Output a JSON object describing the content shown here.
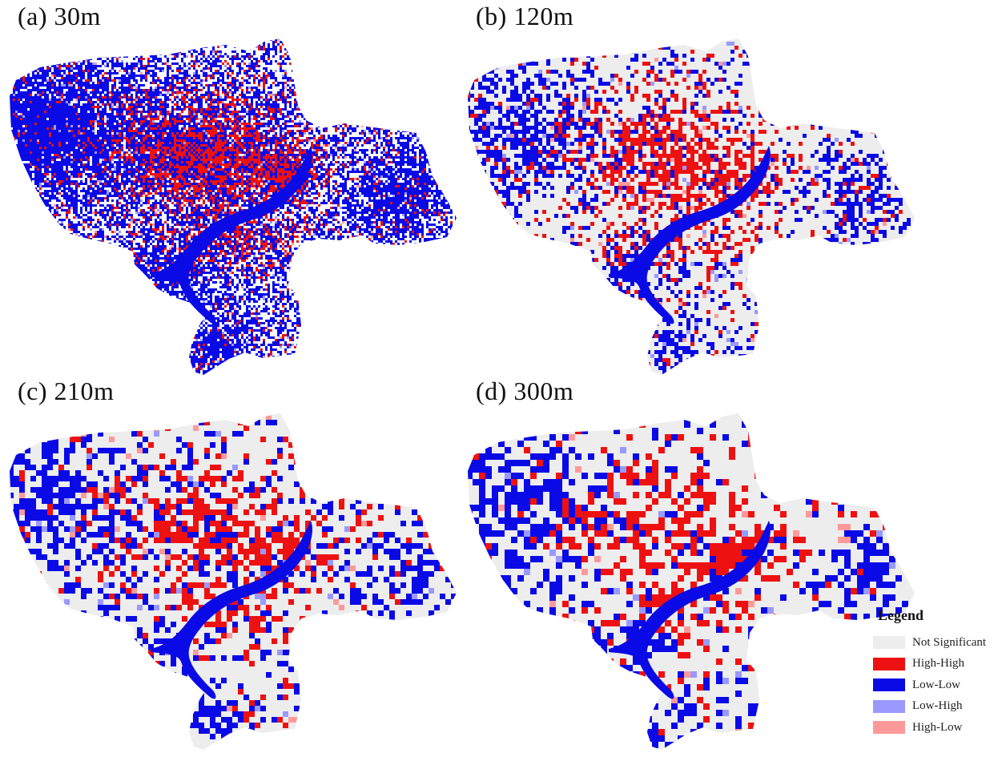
{
  "colors": {
    "not_significant": "#ededed",
    "high_high": "#ee1111",
    "low_low": "#0a0ae6",
    "low_high": "#9999ff",
    "high_low": "#ff9999",
    "river": "#0a0ae6"
  },
  "panels": [
    {
      "id": "a",
      "title": "(a)  30m",
      "resolution_m": 30
    },
    {
      "id": "b",
      "title": "(b)  120m",
      "resolution_m": 120
    },
    {
      "id": "c",
      "title": "(c)  210m",
      "resolution_m": 210
    },
    {
      "id": "d",
      "title": "(d)  300m",
      "resolution_m": 300
    }
  ],
  "legend": {
    "title": "Legend",
    "items": [
      {
        "label": "Not Significant",
        "color": "#ededed"
      },
      {
        "label": "High-High",
        "color": "#ee1111"
      },
      {
        "label": "Low-Low",
        "color": "#0a0ae6"
      },
      {
        "label": "Low-High",
        "color": "#9999ff"
      },
      {
        "label": "High-Low",
        "color": "#ff9999"
      }
    ]
  }
}
